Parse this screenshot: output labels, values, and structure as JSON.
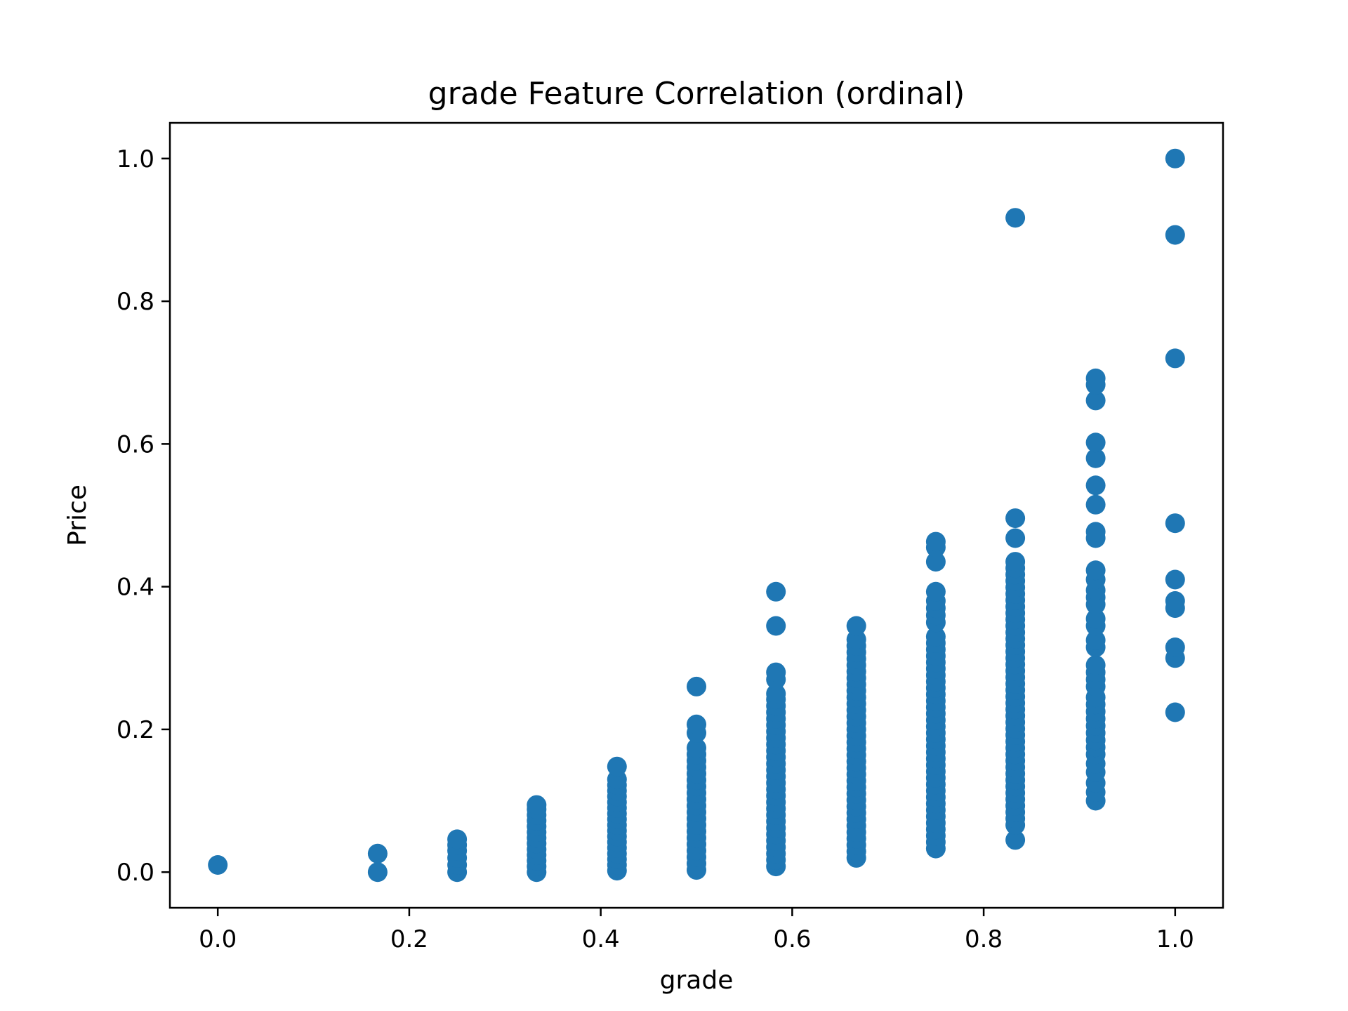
{
  "chart_data": {
    "type": "scatter",
    "title": "grade Feature Correlation (ordinal)",
    "xlabel": "grade",
    "ylabel": "Price",
    "xlim": [
      -0.05,
      1.05
    ],
    "ylim": [
      -0.05,
      1.05
    ],
    "xticks": [
      0.0,
      0.2,
      0.4,
      0.6,
      0.8,
      1.0
    ],
    "xtick_labels": [
      "0.0",
      "0.2",
      "0.4",
      "0.6",
      "0.8",
      "1.0"
    ],
    "yticks": [
      0.0,
      0.2,
      0.4,
      0.6,
      0.8,
      1.0
    ],
    "ytick_labels": [
      "0.0",
      "0.2",
      "0.4",
      "0.6",
      "0.8",
      "1.0"
    ],
    "grid": false,
    "marker_color": "#1f77b4",
    "series": [
      {
        "name": "grade vs Price",
        "points": [
          [
            0.0,
            0.01
          ],
          [
            0.167,
            0.0
          ],
          [
            0.167,
            0.026
          ],
          [
            0.25,
            0.0
          ],
          [
            0.25,
            0.01
          ],
          [
            0.25,
            0.02
          ],
          [
            0.25,
            0.03
          ],
          [
            0.25,
            0.038
          ],
          [
            0.25,
            0.046
          ],
          [
            0.333,
            0.0
          ],
          [
            0.333,
            0.008
          ],
          [
            0.333,
            0.016
          ],
          [
            0.333,
            0.024
          ],
          [
            0.333,
            0.032
          ],
          [
            0.333,
            0.04
          ],
          [
            0.333,
            0.048
          ],
          [
            0.333,
            0.056
          ],
          [
            0.333,
            0.064
          ],
          [
            0.333,
            0.072
          ],
          [
            0.333,
            0.08
          ],
          [
            0.333,
            0.088
          ],
          [
            0.333,
            0.094
          ],
          [
            0.417,
            0.002
          ],
          [
            0.417,
            0.01
          ],
          [
            0.417,
            0.018
          ],
          [
            0.417,
            0.026
          ],
          [
            0.417,
            0.034
          ],
          [
            0.417,
            0.042
          ],
          [
            0.417,
            0.05
          ],
          [
            0.417,
            0.058
          ],
          [
            0.417,
            0.066
          ],
          [
            0.417,
            0.074
          ],
          [
            0.417,
            0.082
          ],
          [
            0.417,
            0.09
          ],
          [
            0.417,
            0.098
          ],
          [
            0.417,
            0.106
          ],
          [
            0.417,
            0.114
          ],
          [
            0.417,
            0.122
          ],
          [
            0.417,
            0.13
          ],
          [
            0.417,
            0.148
          ],
          [
            0.5,
            0.003
          ],
          [
            0.5,
            0.012
          ],
          [
            0.5,
            0.021
          ],
          [
            0.5,
            0.03
          ],
          [
            0.5,
            0.039
          ],
          [
            0.5,
            0.048
          ],
          [
            0.5,
            0.057
          ],
          [
            0.5,
            0.066
          ],
          [
            0.5,
            0.075
          ],
          [
            0.5,
            0.084
          ],
          [
            0.5,
            0.093
          ],
          [
            0.5,
            0.102
          ],
          [
            0.5,
            0.111
          ],
          [
            0.5,
            0.12
          ],
          [
            0.5,
            0.129
          ],
          [
            0.5,
            0.138
          ],
          [
            0.5,
            0.147
          ],
          [
            0.5,
            0.156
          ],
          [
            0.5,
            0.165
          ],
          [
            0.5,
            0.174
          ],
          [
            0.5,
            0.195
          ],
          [
            0.5,
            0.207
          ],
          [
            0.5,
            0.26
          ],
          [
            0.583,
            0.008
          ],
          [
            0.583,
            0.017
          ],
          [
            0.583,
            0.026
          ],
          [
            0.583,
            0.035
          ],
          [
            0.583,
            0.044
          ],
          [
            0.583,
            0.053
          ],
          [
            0.583,
            0.062
          ],
          [
            0.583,
            0.071
          ],
          [
            0.583,
            0.08
          ],
          [
            0.583,
            0.089
          ],
          [
            0.583,
            0.098
          ],
          [
            0.583,
            0.107
          ],
          [
            0.583,
            0.116
          ],
          [
            0.583,
            0.125
          ],
          [
            0.583,
            0.134
          ],
          [
            0.583,
            0.143
          ],
          [
            0.583,
            0.152
          ],
          [
            0.583,
            0.161
          ],
          [
            0.583,
            0.17
          ],
          [
            0.583,
            0.179
          ],
          [
            0.583,
            0.188
          ],
          [
            0.583,
            0.197
          ],
          [
            0.583,
            0.206
          ],
          [
            0.583,
            0.215
          ],
          [
            0.583,
            0.224
          ],
          [
            0.583,
            0.233
          ],
          [
            0.583,
            0.242
          ],
          [
            0.583,
            0.25
          ],
          [
            0.583,
            0.27
          ],
          [
            0.583,
            0.28
          ],
          [
            0.583,
            0.345
          ],
          [
            0.583,
            0.393
          ],
          [
            0.667,
            0.02
          ],
          [
            0.667,
            0.029
          ],
          [
            0.667,
            0.038
          ],
          [
            0.667,
            0.047
          ],
          [
            0.667,
            0.056
          ],
          [
            0.667,
            0.065
          ],
          [
            0.667,
            0.074
          ],
          [
            0.667,
            0.083
          ],
          [
            0.667,
            0.092
          ],
          [
            0.667,
            0.101
          ],
          [
            0.667,
            0.11
          ],
          [
            0.667,
            0.119
          ],
          [
            0.667,
            0.128
          ],
          [
            0.667,
            0.137
          ],
          [
            0.667,
            0.146
          ],
          [
            0.667,
            0.155
          ],
          [
            0.667,
            0.164
          ],
          [
            0.667,
            0.173
          ],
          [
            0.667,
            0.182
          ],
          [
            0.667,
            0.191
          ],
          [
            0.667,
            0.2
          ],
          [
            0.667,
            0.209
          ],
          [
            0.667,
            0.218
          ],
          [
            0.667,
            0.227
          ],
          [
            0.667,
            0.236
          ],
          [
            0.667,
            0.245
          ],
          [
            0.667,
            0.254
          ],
          [
            0.667,
            0.263
          ],
          [
            0.667,
            0.272
          ],
          [
            0.667,
            0.281
          ],
          [
            0.667,
            0.29
          ],
          [
            0.667,
            0.299
          ],
          [
            0.667,
            0.308
          ],
          [
            0.667,
            0.317
          ],
          [
            0.667,
            0.326
          ],
          [
            0.667,
            0.345
          ],
          [
            0.75,
            0.033
          ],
          [
            0.75,
            0.042
          ],
          [
            0.75,
            0.051
          ],
          [
            0.75,
            0.06
          ],
          [
            0.75,
            0.069
          ],
          [
            0.75,
            0.078
          ],
          [
            0.75,
            0.087
          ],
          [
            0.75,
            0.096
          ],
          [
            0.75,
            0.105
          ],
          [
            0.75,
            0.114
          ],
          [
            0.75,
            0.123
          ],
          [
            0.75,
            0.132
          ],
          [
            0.75,
            0.141
          ],
          [
            0.75,
            0.15
          ],
          [
            0.75,
            0.159
          ],
          [
            0.75,
            0.168
          ],
          [
            0.75,
            0.177
          ],
          [
            0.75,
            0.186
          ],
          [
            0.75,
            0.195
          ],
          [
            0.75,
            0.204
          ],
          [
            0.75,
            0.213
          ],
          [
            0.75,
            0.222
          ],
          [
            0.75,
            0.231
          ],
          [
            0.75,
            0.24
          ],
          [
            0.75,
            0.249
          ],
          [
            0.75,
            0.258
          ],
          [
            0.75,
            0.267
          ],
          [
            0.75,
            0.276
          ],
          [
            0.75,
            0.285
          ],
          [
            0.75,
            0.294
          ],
          [
            0.75,
            0.303
          ],
          [
            0.75,
            0.312
          ],
          [
            0.75,
            0.321
          ],
          [
            0.75,
            0.33
          ],
          [
            0.75,
            0.35
          ],
          [
            0.75,
            0.36
          ],
          [
            0.75,
            0.37
          ],
          [
            0.75,
            0.38
          ],
          [
            0.75,
            0.393
          ],
          [
            0.75,
            0.435
          ],
          [
            0.75,
            0.455
          ],
          [
            0.75,
            0.463
          ],
          [
            0.833,
            0.045
          ],
          [
            0.833,
            0.066
          ],
          [
            0.833,
            0.075
          ],
          [
            0.833,
            0.084
          ],
          [
            0.833,
            0.093
          ],
          [
            0.833,
            0.102
          ],
          [
            0.833,
            0.111
          ],
          [
            0.833,
            0.12
          ],
          [
            0.833,
            0.129
          ],
          [
            0.833,
            0.138
          ],
          [
            0.833,
            0.147
          ],
          [
            0.833,
            0.156
          ],
          [
            0.833,
            0.165
          ],
          [
            0.833,
            0.174
          ],
          [
            0.833,
            0.183
          ],
          [
            0.833,
            0.192
          ],
          [
            0.833,
            0.201
          ],
          [
            0.833,
            0.21
          ],
          [
            0.833,
            0.219
          ],
          [
            0.833,
            0.228
          ],
          [
            0.833,
            0.237
          ],
          [
            0.833,
            0.246
          ],
          [
            0.833,
            0.255
          ],
          [
            0.833,
            0.264
          ],
          [
            0.833,
            0.273
          ],
          [
            0.833,
            0.282
          ],
          [
            0.833,
            0.291
          ],
          [
            0.833,
            0.3
          ],
          [
            0.833,
            0.309
          ],
          [
            0.833,
            0.318
          ],
          [
            0.833,
            0.327
          ],
          [
            0.833,
            0.336
          ],
          [
            0.833,
            0.345
          ],
          [
            0.833,
            0.354
          ],
          [
            0.833,
            0.363
          ],
          [
            0.833,
            0.372
          ],
          [
            0.833,
            0.381
          ],
          [
            0.833,
            0.39
          ],
          [
            0.833,
            0.399
          ],
          [
            0.833,
            0.408
          ],
          [
            0.833,
            0.417
          ],
          [
            0.833,
            0.426
          ],
          [
            0.833,
            0.435
          ],
          [
            0.833,
            0.468
          ],
          [
            0.833,
            0.496
          ],
          [
            0.833,
            0.917
          ],
          [
            0.917,
            0.1
          ],
          [
            0.917,
            0.112
          ],
          [
            0.917,
            0.125
          ],
          [
            0.917,
            0.14
          ],
          [
            0.917,
            0.152
          ],
          [
            0.917,
            0.165
          ],
          [
            0.917,
            0.175
          ],
          [
            0.917,
            0.185
          ],
          [
            0.917,
            0.195
          ],
          [
            0.917,
            0.205
          ],
          [
            0.917,
            0.215
          ],
          [
            0.917,
            0.225
          ],
          [
            0.917,
            0.235
          ],
          [
            0.917,
            0.245
          ],
          [
            0.917,
            0.26
          ],
          [
            0.917,
            0.27
          ],
          [
            0.917,
            0.28
          ],
          [
            0.917,
            0.29
          ],
          [
            0.917,
            0.315
          ],
          [
            0.917,
            0.325
          ],
          [
            0.917,
            0.345
          ],
          [
            0.917,
            0.355
          ],
          [
            0.917,
            0.375
          ],
          [
            0.917,
            0.385
          ],
          [
            0.917,
            0.395
          ],
          [
            0.917,
            0.41
          ],
          [
            0.917,
            0.423
          ],
          [
            0.917,
            0.468
          ],
          [
            0.917,
            0.477
          ],
          [
            0.917,
            0.515
          ],
          [
            0.917,
            0.542
          ],
          [
            0.917,
            0.58
          ],
          [
            0.917,
            0.602
          ],
          [
            0.917,
            0.661
          ],
          [
            0.917,
            0.683
          ],
          [
            0.917,
            0.692
          ],
          [
            1.0,
            0.224
          ],
          [
            1.0,
            0.3
          ],
          [
            1.0,
            0.315
          ],
          [
            1.0,
            0.37
          ],
          [
            1.0,
            0.38
          ],
          [
            1.0,
            0.41
          ],
          [
            1.0,
            0.489
          ],
          [
            1.0,
            0.72
          ],
          [
            1.0,
            0.893
          ],
          [
            1.0,
            1.0
          ]
        ]
      }
    ]
  }
}
